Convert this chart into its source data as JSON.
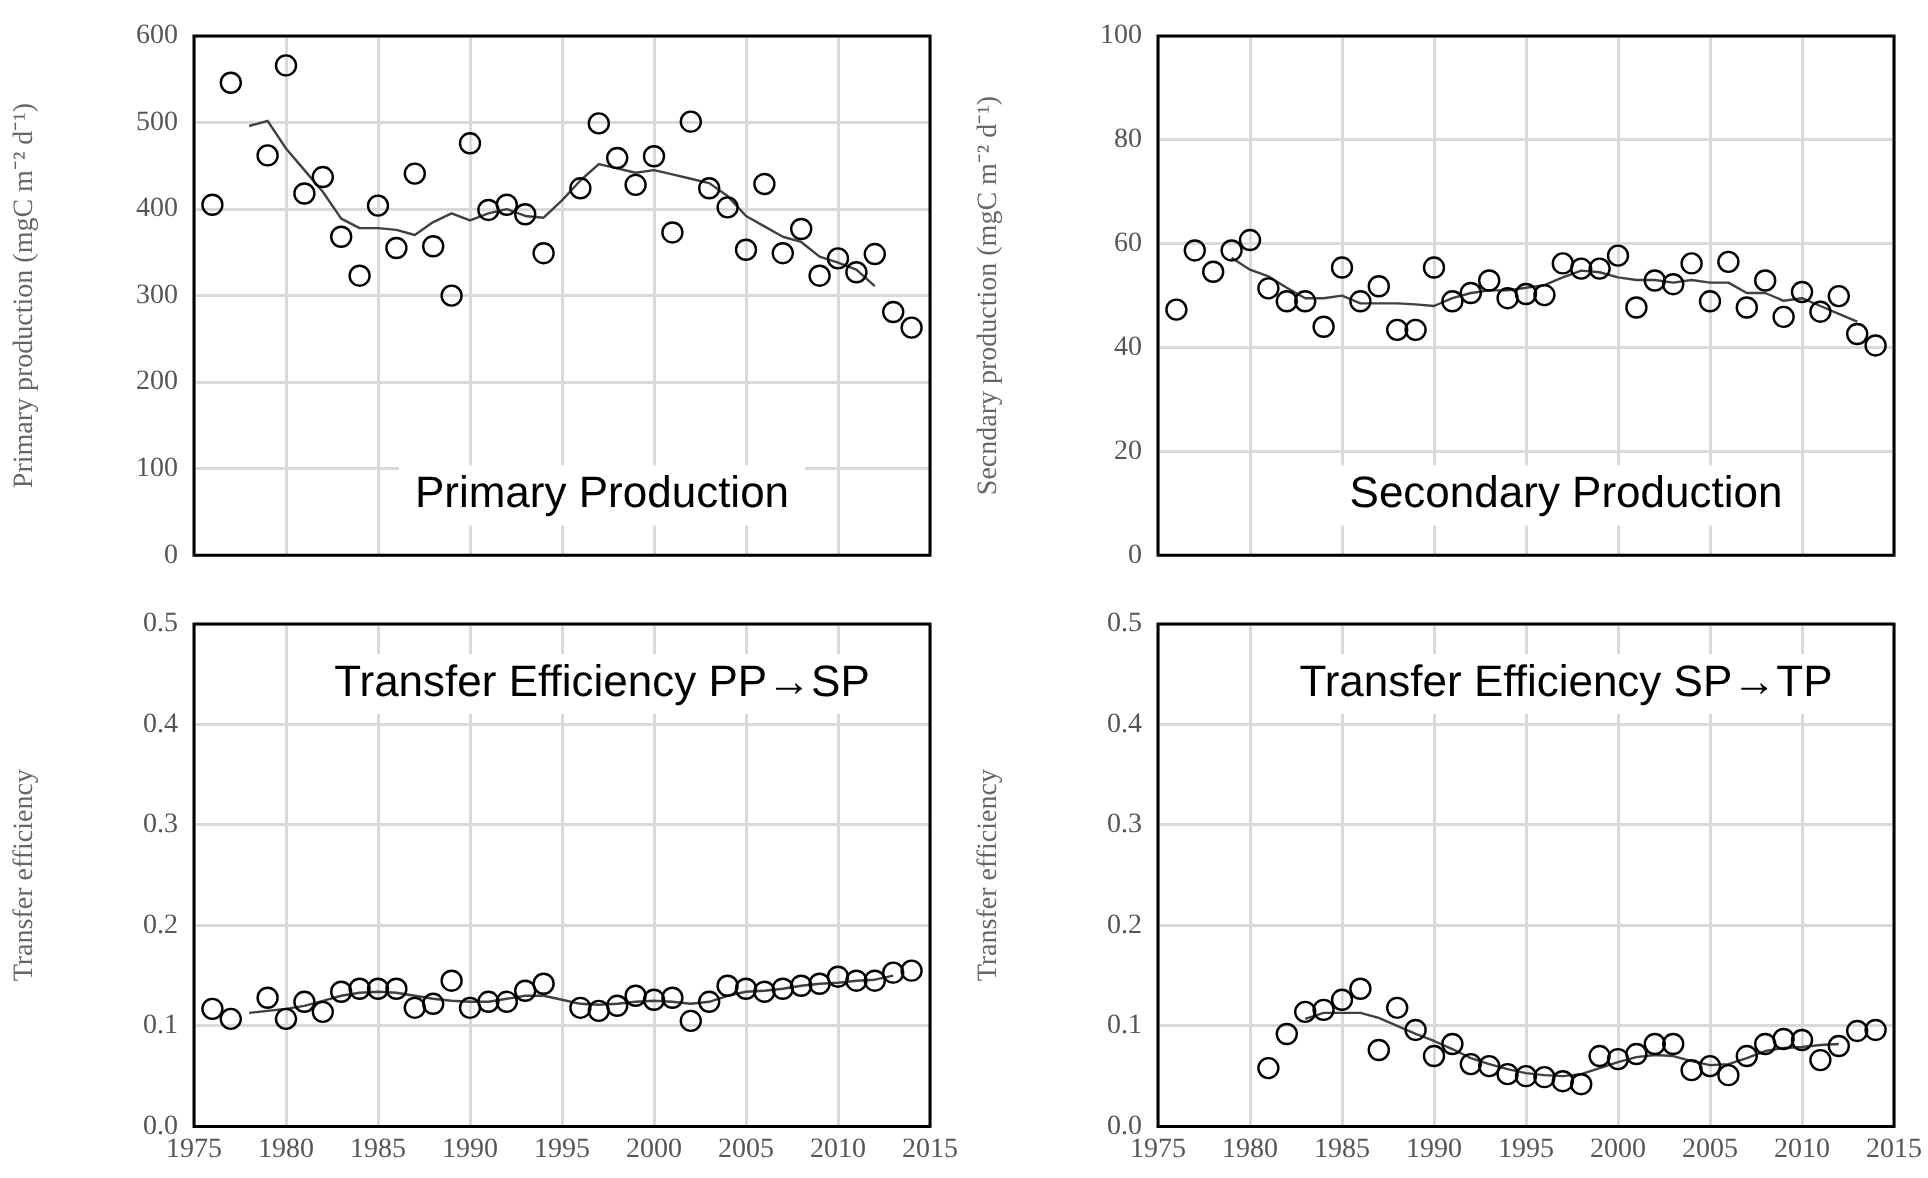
{
  "chart_data": [
    {
      "type": "scatter",
      "ylabel": "Primary production (mgC m⁻² d⁻¹)",
      "annotations": [
        "Primary Production"
      ],
      "xlim": [
        1975,
        2015
      ],
      "xticks": [
        1975,
        1980,
        1985,
        1990,
        1995,
        2000,
        2005,
        2010,
        2015
      ],
      "ylim": [
        0,
        600
      ],
      "yticks": [
        0,
        100,
        200,
        300,
        400,
        500,
        600
      ],
      "grid": true,
      "tick_labels": "y",
      "series": [
        {
          "type": "scatter",
          "marker": "circle",
          "color": "#000000",
          "x": [
            1976,
            1977,
            1979,
            1980,
            1981,
            1982,
            1983,
            1984,
            1985,
            1986,
            1987,
            1988,
            1989,
            1990,
            1991,
            1992,
            1993,
            1994,
            1996,
            1997,
            1998,
            1999,
            2000,
            2001,
            2002,
            2003,
            2004,
            2005,
            2006,
            2007,
            2008,
            2009,
            2010,
            2011,
            2012,
            2013,
            2014
          ],
          "values": [
            405,
            546,
            462,
            566,
            418,
            437,
            368,
            323,
            404,
            355,
            441,
            357,
            300,
            476,
            399,
            405,
            394,
            349,
            424,
            499,
            459,
            428,
            461,
            373,
            501,
            424,
            402,
            353,
            429,
            349,
            377,
            323,
            343,
            327,
            348,
            281,
            263
          ]
        },
        {
          "type": "line",
          "marker": "none",
          "color": "#404040",
          "x": [
            1978,
            1979,
            1980,
            1981,
            1982,
            1983,
            1984,
            1985,
            1986,
            1987,
            1988,
            1989,
            1990,
            1991,
            1992,
            1993,
            1994,
            1995,
            1996,
            1997,
            1998,
            1999,
            2000,
            2001,
            2002,
            2003,
            2004,
            2005,
            2006,
            2007,
            2008,
            2009,
            2010,
            2011,
            2012
          ],
          "values": [
            496,
            502,
            470,
            445,
            420,
            389,
            378,
            378,
            376,
            370,
            385,
            395,
            387,
            395,
            400,
            392,
            390,
            410,
            433,
            452,
            447,
            442,
            445,
            440,
            435,
            430,
            415,
            392,
            380,
            368,
            362,
            345,
            338,
            330,
            311
          ]
        }
      ]
    },
    {
      "type": "scatter",
      "ylabel": "Secndary production (mgC m⁻² d⁻¹)",
      "annotations": [
        "Secondary Production"
      ],
      "xlim": [
        1975,
        2015
      ],
      "xticks": [
        1975,
        1980,
        1985,
        1990,
        1995,
        2000,
        2005,
        2010,
        2015
      ],
      "ylim": [
        0,
        100
      ],
      "yticks": [
        0,
        20,
        40,
        60,
        80,
        100
      ],
      "grid": true,
      "tick_labels": "y",
      "series": [
        {
          "type": "scatter",
          "marker": "circle",
          "color": "#000000",
          "x": [
            1976,
            1977,
            1978,
            1979,
            1980,
            1981,
            1982,
            1983,
            1984,
            1985,
            1986,
            1987,
            1988,
            1989,
            1990,
            1991,
            1992,
            1993,
            1994,
            1995,
            1996,
            1997,
            1998,
            1999,
            2000,
            2001,
            2002,
            2003,
            2004,
            2005,
            2006,
            2007,
            2008,
            2009,
            2010,
            2011,
            2012,
            2013,
            2014
          ],
          "values": [
            47.3,
            58.7,
            54.6,
            58.7,
            60.7,
            51.4,
            48.9,
            48.9,
            44.0,
            55.4,
            48.9,
            51.8,
            43.4,
            43.4,
            55.4,
            48.9,
            50.5,
            52.9,
            49.5,
            50.3,
            50.1,
            56.2,
            55.2,
            55.2,
            57.7,
            47.7,
            52.9,
            52.2,
            56.2,
            48.9,
            56.5,
            47.7,
            52.9,
            45.9,
            50.7,
            46.9,
            49.9,
            42.6,
            40.4
          ]
        },
        {
          "type": "line",
          "marker": "none",
          "color": "#404040",
          "x": [
            1979,
            1980,
            1981,
            1982,
            1983,
            1984,
            1985,
            1986,
            1987,
            1988,
            1989,
            1990,
            1991,
            1992,
            1993,
            1994,
            1995,
            1996,
            1997,
            1998,
            1999,
            2000,
            2001,
            2002,
            2003,
            2004,
            2005,
            2006,
            2007,
            2008,
            2009,
            2010,
            2011,
            2012,
            2013
          ],
          "values": [
            57.3,
            55,
            53.7,
            51.5,
            49.5,
            49.5,
            50,
            48.5,
            48.5,
            48.5,
            48.3,
            48.0,
            49.5,
            50.5,
            51,
            51,
            51.5,
            52,
            53.5,
            54.8,
            54.5,
            53.5,
            53,
            53,
            52.5,
            53,
            52.5,
            52.5,
            50.5,
            50.5,
            49,
            49.5,
            48,
            46.5,
            45
          ]
        }
      ]
    },
    {
      "type": "scatter",
      "ylabel": "Transfer efficiency",
      "annotations": [
        "Transfer Efficiency PP→SP"
      ],
      "xlim": [
        1975,
        2015
      ],
      "xticks": [
        1975,
        1980,
        1985,
        1990,
        1995,
        2000,
        2005,
        2010,
        2015
      ],
      "ylim": [
        0,
        0.5
      ],
      "yticks": [
        {
          "value": 0,
          "label": "0.0"
        },
        0.1,
        0.2,
        0.3,
        0.4,
        0.5
      ],
      "grid": true,
      "series": [
        {
          "type": "scatter",
          "marker": "circle",
          "color": "#000000",
          "x": [
            1976,
            1977,
            1979,
            1980,
            1981,
            1982,
            1983,
            1984,
            1985,
            1986,
            1987,
            1988,
            1989,
            1990,
            1991,
            1992,
            1993,
            1994,
            1996,
            1997,
            1998,
            1999,
            2000,
            2001,
            2002,
            2003,
            2004,
            2005,
            2006,
            2007,
            2008,
            2009,
            2010,
            2011,
            2012,
            2013,
            2014
          ],
          "values": [
            0.117,
            0.107,
            0.128,
            0.107,
            0.124,
            0.114,
            0.134,
            0.137,
            0.137,
            0.137,
            0.118,
            0.122,
            0.145,
            0.118,
            0.124,
            0.124,
            0.135,
            0.142,
            0.118,
            0.115,
            0.12,
            0.13,
            0.126,
            0.128,
            0.105,
            0.124,
            0.14,
            0.137,
            0.134,
            0.137,
            0.14,
            0.142,
            0.149,
            0.145,
            0.145,
            0.153,
            0.155
          ]
        },
        {
          "type": "line",
          "marker": "none",
          "color": "#404040",
          "x": [
            1978,
            1979,
            1980,
            1981,
            1982,
            1983,
            1984,
            1985,
            1986,
            1987,
            1988,
            1989,
            1990,
            1991,
            1992,
            1993,
            1994,
            1995,
            1996,
            1997,
            1998,
            1999,
            2000,
            2001,
            2002,
            2003,
            2004,
            2005,
            2006,
            2007,
            2008,
            2009,
            2010,
            2011,
            2012,
            2013
          ],
          "values": [
            0.113,
            0.115,
            0.117,
            0.12,
            0.125,
            0.13,
            0.133,
            0.134,
            0.133,
            0.13,
            0.127,
            0.125,
            0.124,
            0.124,
            0.127,
            0.13,
            0.13,
            0.126,
            0.122,
            0.121,
            0.122,
            0.124,
            0.125,
            0.124,
            0.122,
            0.124,
            0.13,
            0.134,
            0.135,
            0.137,
            0.14,
            0.142,
            0.143,
            0.145,
            0.146,
            0.15
          ]
        }
      ]
    },
    {
      "type": "scatter",
      "ylabel": "Transfer efficiency",
      "annotations": [
        "Transfer Efficiency SP→TP"
      ],
      "xlim": [
        1975,
        2015
      ],
      "xticks": [
        1975,
        1980,
        1985,
        1990,
        1995,
        2000,
        2005,
        2010,
        2015
      ],
      "ylim": [
        0,
        0.5
      ],
      "yticks": [
        {
          "value": 0,
          "label": "0.0"
        },
        0.1,
        0.2,
        0.3,
        0.4,
        0.5
      ],
      "grid": true,
      "series": [
        {
          "type": "scatter",
          "marker": "circle",
          "color": "#000000",
          "x": [
            1981,
            1982,
            1983,
            1984,
            1985,
            1986,
            1987,
            1988,
            1989,
            1990,
            1991,
            1992,
            1993,
            1994,
            1995,
            1996,
            1997,
            1998,
            1999,
            2000,
            2001,
            2002,
            2003,
            2004,
            2005,
            2006,
            2007,
            2008,
            2009,
            2010,
            2011,
            2012,
            2013,
            2014
          ],
          "values": [
            0.058,
            0.092,
            0.114,
            0.116,
            0.126,
            0.137,
            0.076,
            0.118,
            0.096,
            0.07,
            0.082,
            0.062,
            0.06,
            0.052,
            0.05,
            0.049,
            0.045,
            0.042,
            0.07,
            0.067,
            0.072,
            0.082,
            0.082,
            0.056,
            0.06,
            0.051,
            0.07,
            0.082,
            0.087,
            0.086,
            0.066,
            0.08,
            0.095,
            0.096
          ]
        },
        {
          "type": "line",
          "marker": "none",
          "color": "#404040",
          "x": [
            1983,
            1984,
            1985,
            1986,
            1987,
            1988,
            1989,
            1990,
            1991,
            1992,
            1993,
            1994,
            1995,
            1996,
            1997,
            1998,
            1999,
            2000,
            2001,
            2002,
            2003,
            2004,
            2005,
            2006,
            2007,
            2008,
            2009,
            2010,
            2011,
            2012
          ],
          "values": [
            0.107,
            0.113,
            0.113,
            0.113,
            0.108,
            0.1,
            0.092,
            0.085,
            0.077,
            0.068,
            0.062,
            0.057,
            0.053,
            0.051,
            0.05,
            0.052,
            0.058,
            0.064,
            0.069,
            0.071,
            0.07,
            0.065,
            0.061,
            0.062,
            0.068,
            0.075,
            0.078,
            0.079,
            0.081,
            0.082
          ]
        }
      ]
    }
  ]
}
